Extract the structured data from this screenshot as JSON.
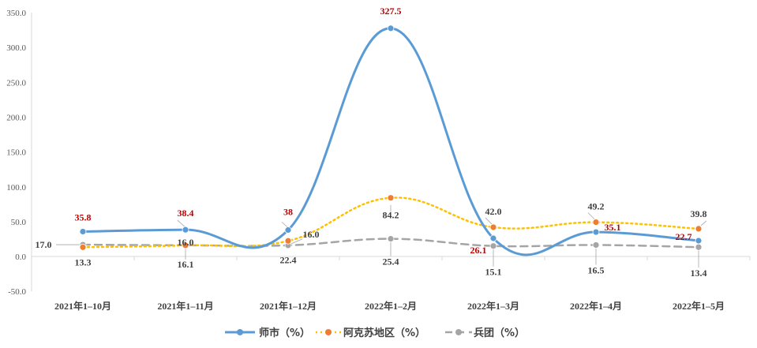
{
  "chart_data": {
    "type": "line",
    "categories": [
      "2021年1–10月",
      "2021年1–11月",
      "2021年1–12月",
      "2022年1–2月",
      "2022年1–3月",
      "2022年1–4月",
      "2022年1–5月"
    ],
    "y_ticks": [
      "350.0",
      "300.0",
      "250.0",
      "200.0",
      "150.0",
      "100.0",
      "50.0",
      "0.0",
      "-50.0"
    ],
    "ylim": [
      -50,
      350
    ],
    "grid": false,
    "legend_position": "bottom",
    "series": [
      {
        "name": "师市（%）",
        "values": [
          35.8,
          38.4,
          38,
          327.5,
          26.1,
          35.1,
          22.7
        ],
        "labels": [
          "35.8",
          "38.4",
          "38",
          "327.5",
          "26.1",
          "35.1",
          "22.7"
        ],
        "color": "#5b9bd5",
        "line_style": "solid"
      },
      {
        "name": "阿克苏地区（%）",
        "values": [
          13.3,
          16.0,
          22.4,
          84.2,
          42.0,
          49.2,
          39.8
        ],
        "labels": [
          "13.3",
          "16.0",
          "22.4",
          "84.2",
          "42.0",
          "49.2",
          "39.8"
        ],
        "color": "#ffc000",
        "marker_color": "#ed7d31",
        "line_style": "dotted"
      },
      {
        "name": "兵团（%）",
        "values": [
          17.0,
          16.1,
          16.0,
          25.4,
          15.1,
          16.5,
          13.4
        ],
        "labels": [
          "17.0",
          "16.1",
          "16.0",
          "25.4",
          "15.1",
          "16.5",
          "13.4"
        ],
        "color": "#a5a5a5",
        "line_style": "dashed"
      }
    ]
  }
}
